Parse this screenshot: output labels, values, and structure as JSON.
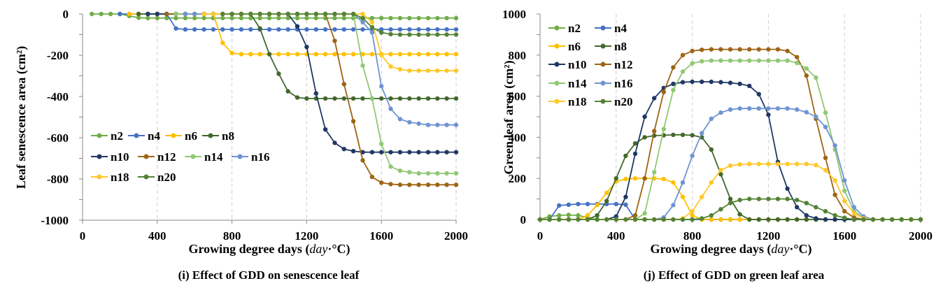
{
  "chart_data": [
    {
      "type": "line",
      "caption": "(i) Effect of GDD on senescence leaf",
      "xlabel": {
        "before": "Growing degree days (",
        "italic": "day",
        "after": "·°C)"
      },
      "ylabel": "Leaf senescence area (cm²)",
      "xlim": [
        0,
        2000
      ],
      "ylim": [
        -1000,
        0
      ],
      "xticks": [
        0,
        400,
        800,
        1200,
        1600,
        2000
      ],
      "yticks": [
        0,
        -200,
        -400,
        -600,
        -800,
        -1000
      ],
      "grid": {
        "x": true,
        "y": false
      },
      "legend": "bottom-left",
      "x": [
        0,
        50,
        100,
        150,
        200,
        250,
        300,
        350,
        400,
        450,
        500,
        550,
        600,
        650,
        700,
        750,
        800,
        850,
        900,
        950,
        1000,
        1050,
        1100,
        1150,
        1200,
        1250,
        1300,
        1350,
        1400,
        1450,
        1500,
        1550,
        1600,
        1650,
        1700,
        1750,
        1800,
        1850,
        1900,
        1950,
        2000
      ],
      "series": [
        {
          "name": "n2",
          "color": "#70AD47",
          "values": [
            null,
            0,
            0,
            0,
            0,
            -10,
            -18,
            -20,
            -20,
            -20,
            -20,
            -20,
            -20,
            -20,
            -20,
            -20,
            -20,
            -20,
            -20,
            -20,
            -20,
            -20,
            -20,
            -20,
            -20,
            -20,
            -20,
            -20,
            -20,
            -20,
            -20,
            -20,
            -20,
            -20,
            -20,
            -20,
            -20,
            -20,
            -20,
            -20,
            -20
          ]
        },
        {
          "name": "n4",
          "color": "#4472C4",
          "values": [
            null,
            null,
            null,
            null,
            0,
            0,
            0,
            0,
            0,
            0,
            -70,
            -75,
            -75,
            -75,
            -75,
            -75,
            -75,
            -75,
            -75,
            -75,
            -75,
            -75,
            -75,
            -75,
            -75,
            -75,
            -75,
            -75,
            -75,
            -75,
            -75,
            -75,
            -75,
            -75,
            -75,
            -75,
            -75,
            -75,
            -75,
            -75,
            -75
          ]
        },
        {
          "name": "n6",
          "color": "#FFC000",
          "values": [
            null,
            null,
            null,
            null,
            null,
            0,
            0,
            0,
            0,
            0,
            0,
            0,
            0,
            0,
            0,
            -140,
            -190,
            -195,
            -195,
            -195,
            -195,
            -195,
            -195,
            -195,
            -195,
            -195,
            -195,
            -195,
            -195,
            -195,
            -195,
            -195,
            -195,
            -195,
            -195,
            -195,
            -195,
            -195,
            -195,
            -195,
            -195
          ]
        },
        {
          "name": "n8",
          "color": "#43682B",
          "values": [
            null,
            null,
            null,
            null,
            null,
            null,
            0,
            0,
            0,
            0,
            0,
            0,
            0,
            0,
            0,
            0,
            0,
            0,
            0,
            -70,
            -195,
            -290,
            -375,
            -405,
            -410,
            -410,
            -410,
            -410,
            -410,
            -410,
            -410,
            -410,
            -410,
            -410,
            -410,
            -410,
            -410,
            -410,
            -410,
            -410,
            -410
          ]
        },
        {
          "name": "n10",
          "color": "#203864",
          "values": [
            null,
            null,
            null,
            null,
            null,
            null,
            null,
            0,
            0,
            0,
            0,
            0,
            0,
            0,
            0,
            0,
            0,
            0,
            0,
            0,
            0,
            0,
            0,
            -60,
            -160,
            -385,
            -560,
            -625,
            -655,
            -665,
            -670,
            -670,
            -670,
            -670,
            -670,
            -670,
            -670,
            -670,
            -670,
            -670,
            -670
          ]
        },
        {
          "name": "n12",
          "color": "#9E6415",
          "values": [
            null,
            null,
            null,
            null,
            null,
            null,
            null,
            null,
            null,
            0,
            0,
            0,
            0,
            0,
            0,
            0,
            0,
            0,
            0,
            0,
            0,
            0,
            0,
            0,
            0,
            0,
            0,
            -130,
            -340,
            -520,
            -710,
            -790,
            -818,
            -825,
            -828,
            -828,
            -828,
            -828,
            -828,
            -828,
            -828
          ]
        },
        {
          "name": "n14",
          "color": "#91C874",
          "values": [
            null,
            null,
            null,
            null,
            null,
            null,
            null,
            null,
            null,
            null,
            0,
            0,
            0,
            0,
            0,
            0,
            0,
            0,
            0,
            0,
            0,
            0,
            0,
            0,
            0,
            0,
            0,
            0,
            0,
            0,
            -250,
            -410,
            -630,
            -740,
            -760,
            -767,
            -773,
            -773,
            -773,
            -773,
            -773
          ]
        },
        {
          "name": "n16",
          "color": "#6F94D2",
          "values": [
            null,
            null,
            null,
            null,
            null,
            null,
            null,
            null,
            null,
            null,
            null,
            0,
            0,
            0,
            0,
            0,
            0,
            0,
            0,
            0,
            0,
            0,
            0,
            0,
            0,
            0,
            0,
            0,
            0,
            0,
            -40,
            -90,
            -350,
            -460,
            -510,
            -525,
            -532,
            -538,
            -538,
            -538,
            -538
          ]
        },
        {
          "name": "n18",
          "color": "#FFC829",
          "values": [
            null,
            null,
            null,
            null,
            null,
            null,
            null,
            null,
            null,
            null,
            null,
            null,
            null,
            0,
            0,
            0,
            0,
            0,
            0,
            0,
            0,
            0,
            0,
            0,
            0,
            0,
            0,
            0,
            0,
            0,
            0,
            -40,
            -200,
            -255,
            -268,
            -275,
            -275,
            -275,
            -275,
            -275,
            -275
          ]
        },
        {
          "name": "n20",
          "color": "#548235",
          "values": [
            null,
            null,
            null,
            null,
            null,
            null,
            null,
            null,
            null,
            null,
            null,
            null,
            null,
            null,
            null,
            0,
            0,
            0,
            0,
            0,
            0,
            0,
            0,
            0,
            0,
            0,
            0,
            0,
            0,
            0,
            -20,
            -65,
            -90,
            -98,
            -100,
            -100,
            -100,
            -100,
            -100,
            -100,
            -100
          ]
        }
      ]
    },
    {
      "type": "line",
      "caption": "(j) Effect of GDD on green leaf area",
      "xlabel": {
        "before": "Growing degree days (",
        "italic": "day",
        "after": "·°C)"
      },
      "ylabel": "Green leaf area (cm²)",
      "xlim": [
        0,
        2000
      ],
      "ylim": [
        0,
        1000
      ],
      "xticks": [
        0,
        400,
        800,
        1200,
        1600,
        2000
      ],
      "yticks": [
        0,
        200,
        400,
        600,
        800,
        1000
      ],
      "grid": {
        "x": true,
        "y": false
      },
      "legend": "top-left",
      "x": [
        0,
        50,
        100,
        150,
        200,
        250,
        300,
        350,
        400,
        450,
        500,
        550,
        600,
        650,
        700,
        750,
        800,
        850,
        900,
        950,
        1000,
        1050,
        1100,
        1150,
        1200,
        1250,
        1300,
        1350,
        1400,
        1450,
        1500,
        1550,
        1600,
        1650,
        1700,
        1750,
        1800,
        1850,
        1900,
        1950,
        2000
      ],
      "series": [
        {
          "name": "n2",
          "color": "#70AD47",
          "values": [
            0,
            15,
            20,
            22,
            20,
            10,
            0,
            0,
            0,
            0,
            0,
            0,
            0,
            0,
            0,
            0,
            0,
            0,
            0,
            0,
            0,
            0,
            0,
            0,
            0,
            0,
            0,
            0,
            0,
            0,
            0,
            0,
            0,
            0,
            0,
            0,
            0,
            0,
            0,
            0,
            0
          ]
        },
        {
          "name": "n4",
          "color": "#4472C4",
          "values": [
            0,
            0,
            68,
            72,
            75,
            75,
            75,
            75,
            75,
            72,
            0,
            0,
            0,
            0,
            0,
            0,
            0,
            0,
            0,
            0,
            0,
            0,
            0,
            0,
            0,
            0,
            0,
            0,
            0,
            0,
            0,
            0,
            0,
            0,
            0,
            0,
            0,
            0,
            0,
            0,
            0
          ]
        },
        {
          "name": "n6",
          "color": "#FFC000",
          "values": [
            0,
            0,
            0,
            0,
            0,
            20,
            70,
            130,
            185,
            197,
            200,
            200,
            200,
            197,
            180,
            110,
            20,
            0,
            0,
            0,
            0,
            0,
            0,
            0,
            0,
            0,
            0,
            0,
            0,
            0,
            0,
            0,
            0,
            0,
            0,
            0,
            0,
            0,
            0,
            0,
            0
          ]
        },
        {
          "name": "n8",
          "color": "#43682B",
          "values": [
            0,
            0,
            0,
            0,
            0,
            0,
            20,
            90,
            200,
            310,
            370,
            400,
            408,
            410,
            412,
            412,
            410,
            400,
            340,
            220,
            100,
            25,
            0,
            0,
            0,
            0,
            0,
            0,
            0,
            0,
            0,
            0,
            0,
            0,
            0,
            0,
            0,
            0,
            0,
            0,
            0
          ]
        },
        {
          "name": "n10",
          "color": "#203864",
          "values": [
            0,
            0,
            0,
            0,
            0,
            0,
            0,
            0,
            15,
            110,
            320,
            500,
            590,
            640,
            660,
            668,
            670,
            670,
            670,
            668,
            665,
            660,
            650,
            610,
            510,
            280,
            150,
            60,
            20,
            5,
            0,
            0,
            0,
            0,
            0,
            0,
            0,
            0,
            0,
            0,
            0
          ]
        },
        {
          "name": "n12",
          "color": "#9E6415",
          "values": [
            0,
            0,
            0,
            0,
            0,
            0,
            0,
            0,
            0,
            0,
            20,
            200,
            430,
            620,
            740,
            800,
            820,
            826,
            828,
            828,
            828,
            828,
            828,
            828,
            828,
            828,
            820,
            790,
            700,
            490,
            300,
            120,
            40,
            10,
            0,
            0,
            0,
            0,
            0,
            0,
            0
          ]
        },
        {
          "name": "n14",
          "color": "#91C874",
          "values": [
            0,
            0,
            0,
            0,
            0,
            0,
            0,
            0,
            0,
            0,
            0,
            30,
            230,
            440,
            630,
            720,
            760,
            770,
            773,
            773,
            773,
            773,
            773,
            773,
            773,
            773,
            773,
            762,
            735,
            690,
            520,
            340,
            140,
            40,
            10,
            0,
            0,
            0,
            0,
            0,
            0
          ]
        },
        {
          "name": "n16",
          "color": "#6F94D2",
          "values": [
            0,
            0,
            0,
            0,
            0,
            0,
            0,
            0,
            0,
            0,
            0,
            0,
            0,
            10,
            70,
            180,
            310,
            420,
            490,
            520,
            535,
            540,
            540,
            540,
            540,
            540,
            540,
            535,
            522,
            500,
            450,
            360,
            190,
            60,
            15,
            0,
            0,
            0,
            0,
            0,
            0
          ]
        },
        {
          "name": "n18",
          "color": "#FFC829",
          "values": [
            0,
            0,
            0,
            0,
            0,
            0,
            0,
            0,
            0,
            0,
            0,
            0,
            0,
            0,
            0,
            5,
            40,
            110,
            180,
            240,
            262,
            268,
            270,
            270,
            270,
            270,
            270,
            270,
            270,
            265,
            240,
            190,
            90,
            30,
            5,
            0,
            0,
            0,
            0,
            0,
            0
          ]
        },
        {
          "name": "n20",
          "color": "#548235",
          "values": [
            0,
            0,
            0,
            0,
            0,
            0,
            0,
            0,
            0,
            0,
            0,
            0,
            0,
            0,
            0,
            0,
            0,
            5,
            20,
            50,
            80,
            95,
            100,
            100,
            100,
            100,
            100,
            95,
            80,
            60,
            40,
            20,
            8,
            0,
            0,
            0,
            0,
            0,
            0,
            0,
            0
          ]
        }
      ]
    }
  ]
}
